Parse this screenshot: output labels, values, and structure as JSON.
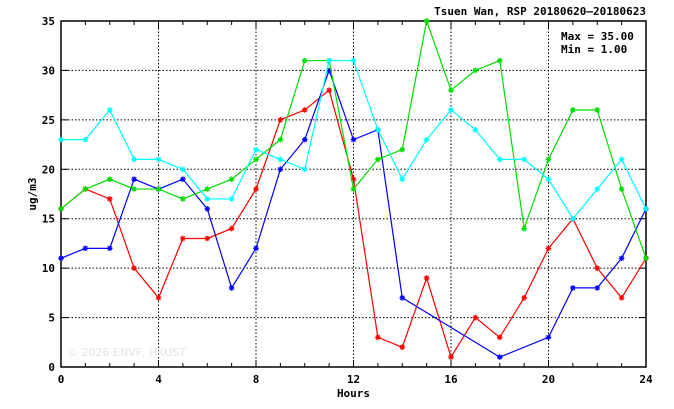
{
  "chart_data": {
    "type": "line",
    "title": "Tsuen Wan, RSP 20180620—20180623",
    "xlabel": "Hours",
    "ylabel": "ug/m3",
    "xlim": [
      0,
      24
    ],
    "ylim": [
      0,
      35
    ],
    "x_ticks": [
      0,
      4,
      8,
      12,
      16,
      20,
      24
    ],
    "y_ticks": [
      0,
      5,
      10,
      15,
      20,
      25,
      30,
      35
    ],
    "grid": true,
    "marker": "asterisk",
    "stats": {
      "max_text": "Max = 35.00",
      "min_text": "Min =  1.00"
    },
    "watermark": "© 2026  ENVF, HKUST",
    "series": [
      {
        "color": "#ff0000",
        "x": [
          0,
          1,
          2,
          3,
          4,
          5,
          6,
          7,
          8,
          9,
          10,
          11,
          12,
          13,
          14,
          15,
          16,
          17,
          18,
          19,
          20,
          21,
          22,
          23,
          24
        ],
        "y": [
          16,
          18,
          17,
          10,
          7,
          13,
          13,
          14,
          18,
          25,
          26,
          28,
          19,
          3,
          2,
          9,
          1,
          5,
          3,
          7,
          12,
          15,
          10,
          7,
          11
        ]
      },
      {
        "color": "#0000ff",
        "x": [
          0,
          1,
          2,
          3,
          4,
          5,
          6,
          7,
          8,
          9,
          10,
          11,
          12,
          13,
          14,
          18,
          20,
          21,
          22,
          23,
          24
        ],
        "y": [
          11,
          12,
          12,
          19,
          18,
          19,
          16,
          8,
          12,
          20,
          23,
          30,
          23,
          24,
          7,
          1,
          3,
          8,
          8,
          11,
          16
        ]
      },
      {
        "color": "#00dd00",
        "x": [
          0,
          1,
          2,
          3,
          4,
          5,
          6,
          7,
          8,
          9,
          10,
          11,
          12,
          13,
          14,
          15,
          16,
          17,
          18,
          19,
          20,
          21,
          22,
          23,
          24
        ],
        "y": [
          16,
          18,
          19,
          18,
          18,
          17,
          18,
          19,
          21,
          23,
          31,
          31,
          18,
          21,
          22,
          35,
          28,
          30,
          31,
          14,
          21,
          26,
          26,
          18,
          11
        ]
      },
      {
        "color": "#00ffff",
        "x": [
          0,
          1,
          2,
          3,
          4,
          5,
          6,
          7,
          8,
          9,
          10,
          11,
          12,
          13,
          14,
          15,
          16,
          17,
          18,
          19,
          20,
          21,
          22,
          23,
          24
        ],
        "y": [
          23,
          23,
          26,
          21,
          21,
          20,
          17,
          17,
          22,
          21,
          20,
          31,
          31,
          24,
          19,
          23,
          26,
          24,
          21,
          21,
          19,
          15,
          18,
          21,
          16
        ]
      }
    ]
  }
}
